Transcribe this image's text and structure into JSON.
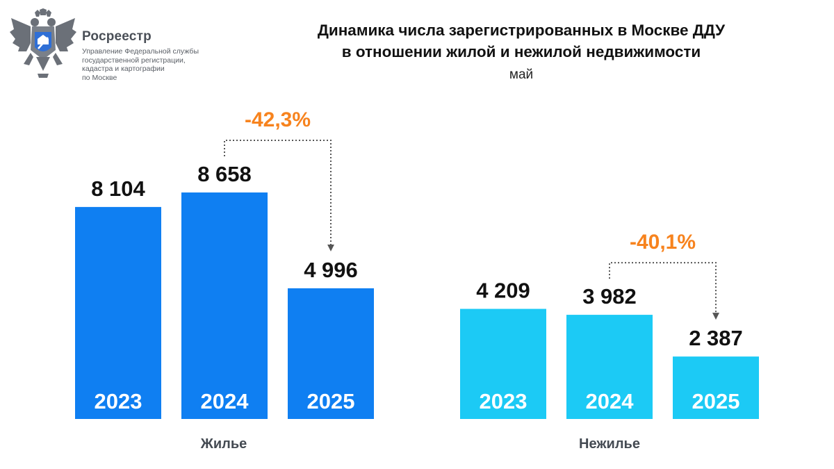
{
  "header": {
    "org_name": "Росреестр",
    "org_desc_lines": [
      "Управление Федеральной службы",
      "государственной регистрации,",
      "кадастра и картографии",
      "по Москве"
    ],
    "logo_icon": "double-headed-eagle-emblem-icon"
  },
  "chart_data": {
    "type": "bar",
    "title_lines": [
      "Динамика числа зарегистрированных в Москве ДДУ",
      "в отношении жилой и нежилой недвижимости"
    ],
    "subtitle": "май",
    "categories": [
      "2023",
      "2024",
      "2025"
    ],
    "groups": [
      {
        "name": "Жилье",
        "color": "#0f7ff2",
        "values": [
          8104,
          8658,
          4996
        ],
        "value_labels": [
          "8 104",
          "8 658",
          "4 996"
        ],
        "change_label": "-42,3%",
        "change_from": "2024",
        "change_to": "2025"
      },
      {
        "name": "Нежилье",
        "color": "#1ccaf5",
        "values": [
          4209,
          3982,
          2387
        ],
        "value_labels": [
          "4 209",
          "3 982",
          "2 387"
        ],
        "change_label": "-40,1%",
        "change_from": "2024",
        "change_to": "2025"
      }
    ],
    "change_color": "#f7831e",
    "connector_color": "#555555",
    "grid": false,
    "legend": "none"
  }
}
